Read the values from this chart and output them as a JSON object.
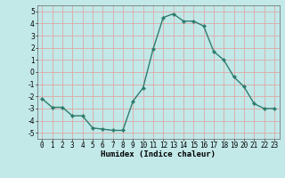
{
  "x": [
    0,
    1,
    2,
    3,
    4,
    5,
    6,
    7,
    8,
    9,
    10,
    11,
    12,
    13,
    14,
    15,
    16,
    17,
    18,
    19,
    20,
    21,
    22,
    23
  ],
  "y": [
    -2.2,
    -2.9,
    -2.9,
    -3.6,
    -3.6,
    -4.6,
    -4.7,
    -4.8,
    -4.8,
    -2.4,
    -1.3,
    1.9,
    4.5,
    4.8,
    4.2,
    4.2,
    3.8,
    1.7,
    1.0,
    -0.4,
    -1.2,
    -2.6,
    -3.0,
    -3.0
  ],
  "line_color": "#2e7d6e",
  "marker": "D",
  "marker_size": 2.2,
  "bg_color": "#c2e8e8",
  "grid_color": "#dda8a8",
  "xlabel": "Humidex (Indice chaleur)",
  "ylim": [
    -5.5,
    5.5
  ],
  "xlim": [
    -0.5,
    23.5
  ],
  "yticks": [
    -5,
    -4,
    -3,
    -2,
    -1,
    0,
    1,
    2,
    3,
    4,
    5
  ],
  "xticks": [
    0,
    1,
    2,
    3,
    4,
    5,
    6,
    7,
    8,
    9,
    10,
    11,
    12,
    13,
    14,
    15,
    16,
    17,
    18,
    19,
    20,
    21,
    22,
    23
  ],
  "xtick_labels": [
    "0",
    "1",
    "2",
    "3",
    "4",
    "5",
    "6",
    "7",
    "8",
    "9",
    "10",
    "11",
    "12",
    "13",
    "14",
    "15",
    "16",
    "17",
    "18",
    "19",
    "20",
    "21",
    "22",
    "23"
  ],
  "tick_fontsize": 5.5,
  "xlabel_fontsize": 6.5,
  "line_width": 1.0
}
